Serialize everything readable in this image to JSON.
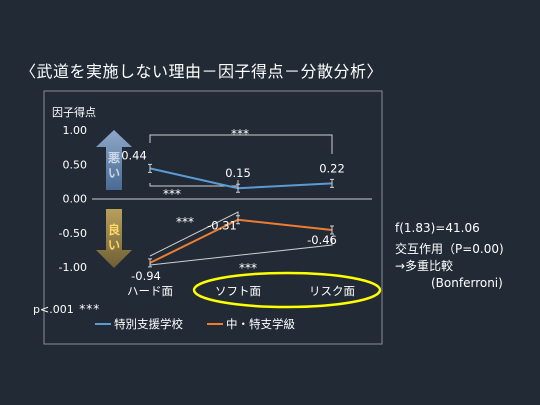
{
  "title": "〈武道を実施しない理由－因子得点－分散分析〉",
  "chart_data": {
    "type": "line",
    "ylabel": "因子得点",
    "categories": [
      "ハード面",
      "ソフト面",
      "リスク面"
    ],
    "ylim": [
      -1.0,
      1.0
    ],
    "y_inverted": true,
    "yticks": [
      "1.00",
      "0.50",
      "0.00",
      "-0.50",
      "-1.00"
    ],
    "ytick_values": [
      -1.0,
      -0.5,
      0.0,
      0.5,
      1.0
    ],
    "series": [
      {
        "name": "特別支援学校",
        "values": [
          0.44,
          0.15,
          0.22
        ],
        "labels": [
          "0.44",
          "0.15",
          "0.22"
        ],
        "color": "#5b9bd5"
      },
      {
        "name": "中・特支学級",
        "values": [
          -0.94,
          -0.31,
          -0.46
        ],
        "labels": [
          "-0.94",
          "-0.31",
          "-0.46"
        ],
        "color": "#ed7d31"
      }
    ],
    "annotations": {
      "bad_label": "悪い",
      "good_label": "良い",
      "significance_marks": [
        "***",
        "***",
        "***",
        "***"
      ]
    },
    "highlight_color": "#ffff00"
  },
  "stats": {
    "f_value": "f(1.83)=41.06",
    "interaction": "交互作用（P=0.00)",
    "posthoc": "→多重比較",
    "method": "(Bonferroni)"
  },
  "significance_note": {
    "text": "p<.001",
    "stars": "***"
  }
}
